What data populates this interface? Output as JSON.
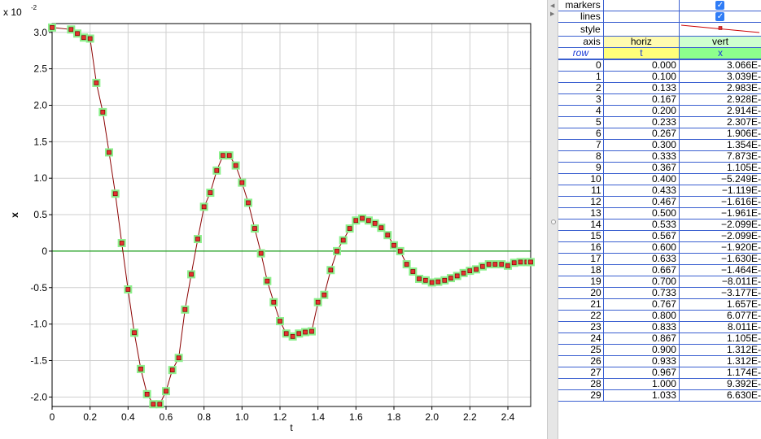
{
  "chart_data": {
    "type": "scatter",
    "title": "",
    "xlabel": "t",
    "ylabel": "x",
    "y_exponent_label": "x 10",
    "y_exponent_power": "-2",
    "xlim": [
      0,
      2.52
    ],
    "ylim": [
      -2.13,
      3.12
    ],
    "x_ticks": [
      "0",
      "0.2",
      "0.4",
      "0.6",
      "0.8",
      "1.0",
      "1.2",
      "1.4",
      "1.6",
      "1.8",
      "2.0",
      "2.2",
      "2.4"
    ],
    "x_tick_values": [
      0,
      0.2,
      0.4,
      0.6,
      0.8,
      1.0,
      1.2,
      1.4,
      1.6,
      1.8,
      2.0,
      2.2,
      2.4
    ],
    "y_ticks": [
      "-2.0",
      "-1.5",
      "-1.0",
      "-0.5",
      "0",
      "0.5",
      "1.0",
      "1.5",
      "2.0",
      "2.5",
      "3.0"
    ],
    "y_tick_values": [
      -2.0,
      -1.5,
      -1.0,
      -0.5,
      0,
      0.5,
      1.0,
      1.5,
      2.0,
      2.5,
      3.0
    ],
    "grid": true,
    "series": [
      {
        "line_color": "#8b0000",
        "marker_color": "#e53030",
        "highlight_color": "#8cf08c",
        "x": [
          0,
          0.1,
          0.133,
          0.167,
          0.2,
          0.233,
          0.267,
          0.3,
          0.333,
          0.367,
          0.4,
          0.433,
          0.467,
          0.5,
          0.533,
          0.567,
          0.6,
          0.633,
          0.667,
          0.7,
          0.733,
          0.767,
          0.8,
          0.833,
          0.867,
          0.9,
          0.933,
          0.967,
          1.0,
          1.033,
          1.067,
          1.1,
          1.133,
          1.167,
          1.2,
          1.233,
          1.267,
          1.3,
          1.333,
          1.367,
          1.4,
          1.433,
          1.467,
          1.5,
          1.533,
          1.567,
          1.6,
          1.633,
          1.667,
          1.7,
          1.733,
          1.767,
          1.8,
          1.833,
          1.867,
          1.9,
          1.933,
          1.967,
          2.0,
          2.033,
          2.067,
          2.1,
          2.133,
          2.167,
          2.2,
          2.233,
          2.267,
          2.3,
          2.333,
          2.367,
          2.4,
          2.433,
          2.467,
          2.5,
          2.52
        ],
        "y": [
          3.066,
          3.039,
          2.983,
          2.928,
          2.914,
          2.307,
          1.906,
          1.354,
          0.7873,
          0.1105,
          -0.5249,
          -1.119,
          -1.616,
          -1.961,
          -2.099,
          -2.099,
          -1.92,
          -1.63,
          -1.464,
          -0.8011,
          -0.3177,
          0.1657,
          0.6077,
          0.8011,
          1.105,
          1.312,
          1.312,
          1.174,
          0.9392,
          0.663,
          0.31,
          -0.03,
          -0.41,
          -0.7,
          -0.96,
          -1.13,
          -1.17,
          -1.13,
          -1.11,
          -1.1,
          -0.7,
          -0.6,
          -0.26,
          0.0,
          0.15,
          0.31,
          0.42,
          0.45,
          0.42,
          0.38,
          0.32,
          0.22,
          0.08,
          0.0,
          -0.18,
          -0.28,
          -0.38,
          -0.4,
          -0.43,
          -0.42,
          -0.4,
          -0.37,
          -0.34,
          -0.3,
          -0.27,
          -0.25,
          -0.21,
          -0.18,
          -0.18,
          -0.18,
          -0.2,
          -0.16,
          -0.15,
          -0.15,
          -0.15
        ]
      }
    ]
  },
  "table": {
    "props": [
      {
        "label": "markers",
        "value": "checked"
      },
      {
        "label": "lines",
        "value": "checked"
      },
      {
        "label": "style",
        "value": "line-with-square-marker"
      }
    ],
    "axis_row": {
      "label": "axis",
      "horiz": "horiz",
      "vert": "vert"
    },
    "header": {
      "row": "row",
      "t": "t",
      "x": "x"
    },
    "rows": [
      {
        "row": "0",
        "t": "0.000",
        "x": "3.066E-"
      },
      {
        "row": "1",
        "t": "0.100",
        "x": "3.039E-"
      },
      {
        "row": "2",
        "t": "0.133",
        "x": "2.983E-"
      },
      {
        "row": "3",
        "t": "0.167",
        "x": "2.928E-"
      },
      {
        "row": "4",
        "t": "0.200",
        "x": "2.914E-"
      },
      {
        "row": "5",
        "t": "0.233",
        "x": "2.307E-"
      },
      {
        "row": "6",
        "t": "0.267",
        "x": "1.906E-"
      },
      {
        "row": "7",
        "t": "0.300",
        "x": "1.354E-"
      },
      {
        "row": "8",
        "t": "0.333",
        "x": "7.873E-"
      },
      {
        "row": "9",
        "t": "0.367",
        "x": "1.105E-"
      },
      {
        "row": "10",
        "t": "0.400",
        "x": "−5.249E-"
      },
      {
        "row": "11",
        "t": "0.433",
        "x": "−1.119E-"
      },
      {
        "row": "12",
        "t": "0.467",
        "x": "−1.616E-"
      },
      {
        "row": "13",
        "t": "0.500",
        "x": "−1.961E-"
      },
      {
        "row": "14",
        "t": "0.533",
        "x": "−2.099E-"
      },
      {
        "row": "15",
        "t": "0.567",
        "x": "−2.099E-"
      },
      {
        "row": "16",
        "t": "0.600",
        "x": "−1.920E-"
      },
      {
        "row": "17",
        "t": "0.633",
        "x": "−1.630E-"
      },
      {
        "row": "18",
        "t": "0.667",
        "x": "−1.464E-"
      },
      {
        "row": "19",
        "t": "0.700",
        "x": "−8.011E-"
      },
      {
        "row": "20",
        "t": "0.733",
        "x": "−3.177E-"
      },
      {
        "row": "21",
        "t": "0.767",
        "x": "1.657E-"
      },
      {
        "row": "22",
        "t": "0.800",
        "x": "6.077E-"
      },
      {
        "row": "23",
        "t": "0.833",
        "x": "8.011E-"
      },
      {
        "row": "24",
        "t": "0.867",
        "x": "1.105E-"
      },
      {
        "row": "25",
        "t": "0.900",
        "x": "1.312E-"
      },
      {
        "row": "26",
        "t": "0.933",
        "x": "1.312E-"
      },
      {
        "row": "27",
        "t": "0.967",
        "x": "1.174E-"
      },
      {
        "row": "28",
        "t": "1.000",
        "x": "9.392E-"
      },
      {
        "row": "29",
        "t": "1.033",
        "x": "6.630E-"
      }
    ]
  }
}
